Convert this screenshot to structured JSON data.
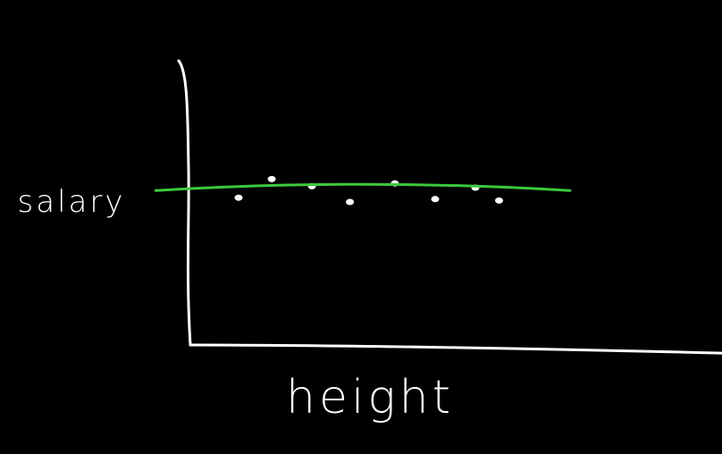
{
  "chart_data": {
    "type": "scatter",
    "title": "",
    "xlabel": "height",
    "ylabel": "salary",
    "grid": false,
    "legend": "none",
    "points": [
      {
        "x": 1.0,
        "y": 5.15
      },
      {
        "x": 1.7,
        "y": 5.8
      },
      {
        "x": 2.55,
        "y": 5.55
      },
      {
        "x": 3.35,
        "y": 5.0
      },
      {
        "x": 4.3,
        "y": 5.65
      },
      {
        "x": 5.15,
        "y": 5.1
      },
      {
        "x": 6.0,
        "y": 5.5
      },
      {
        "x": 6.5,
        "y": 5.05
      }
    ],
    "trend_line": {
      "x": [
        -0.75,
        8.0
      ],
      "y": [
        5.4,
        5.4
      ]
    },
    "xlim": [
      -0.7,
      11.8
    ],
    "ylim": [
      0,
      10
    ],
    "colors": {
      "background": "#000000",
      "axes": "#ffffff",
      "points": "#ffffff",
      "trend_line": "#3cc83c"
    }
  }
}
